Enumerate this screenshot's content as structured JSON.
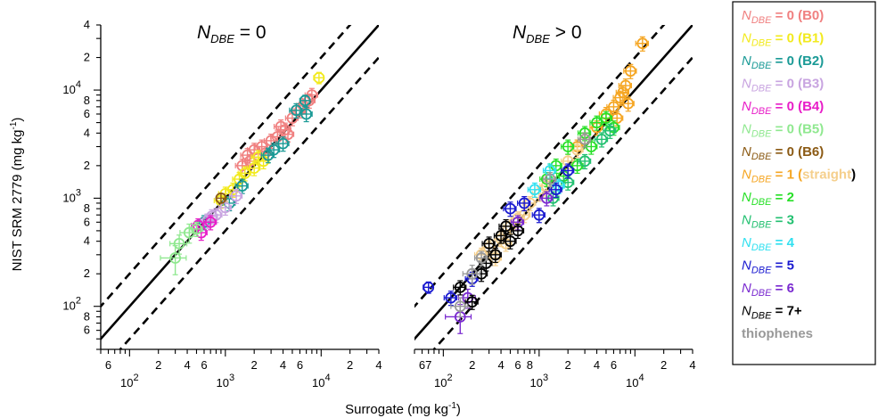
{
  "figure": {
    "xlabel": "Surrogate (mg kg",
    "xlabel_sup": "-1",
    "xlabel_close": ")",
    "ylabel": "NIST SRM 2779 (mg kg",
    "ylabel_sup": "-1",
    "ylabel_close": ")",
    "panel_titles": [
      {
        "base": "N",
        "sub": "DBE",
        "rest": " = 0"
      },
      {
        "base": "N",
        "sub": "DBE",
        "rest": " > 0"
      }
    ],
    "legend": [
      {
        "base": "N",
        "sub": "DBE",
        "rest": " = 0 (B0)",
        "color": "#f08080"
      },
      {
        "base": "N",
        "sub": "DBE",
        "rest": " = 0 (B1)",
        "color": "#f2ea1e"
      },
      {
        "base": "N",
        "sub": "DBE",
        "rest": " = 0 (B2)",
        "color": "#1a9a96"
      },
      {
        "base": "N",
        "sub": "DBE",
        "rest": " = 0 (B3)",
        "color": "#c8a4e0"
      },
      {
        "base": "N",
        "sub": "DBE",
        "rest": " = 0 (B4)",
        "color": "#e81ec8"
      },
      {
        "base": "N",
        "sub": "DBE",
        "rest": " = 0 (B5)",
        "color": "#8fe88f"
      },
      {
        "base": "N",
        "sub": "DBE",
        "rest": " = 0 (B6)",
        "color": "#8b5a14"
      },
      {
        "base": "N",
        "sub": "DBE",
        "rest": " = 1 (",
        "rest2": "straight",
        "rest3": ")",
        "color": "#f5a623",
        "color2": "#f5cf8c",
        "color3": "#000000"
      },
      {
        "base": "N",
        "sub": "DBE",
        "rest": " = 2",
        "color": "#28e028"
      },
      {
        "base": "N",
        "sub": "DBE",
        "rest": " = 3",
        "color": "#22c070"
      },
      {
        "base": "N",
        "sub": "DBE",
        "rest": " = 4",
        "color": "#30e0f0"
      },
      {
        "base": "N",
        "sub": "DBE",
        "rest": " = 5",
        "color": "#1a1ad0"
      },
      {
        "base": "N",
        "sub": "DBE",
        "rest": " = 6",
        "color": "#7a2ad0"
      },
      {
        "base": "N",
        "sub": "DBE",
        "rest": " = 7+",
        "color": "#000000"
      },
      {
        "text": "thiophenes",
        "color": "#999999"
      }
    ]
  },
  "chart_data": [
    {
      "type": "scatter",
      "title": "N_DBE = 0",
      "xlabel": "Surrogate (mg kg-1)",
      "ylabel": "NIST SRM 2779 (mg kg-1)",
      "x_scale": "log",
      "y_scale": "log",
      "xlim": [
        50,
        40000
      ],
      "ylim": [
        40,
        40000
      ],
      "x_ticks": [
        {
          "v": 60,
          "t": "6"
        },
        {
          "v": 100,
          "t": "10",
          "sup": "2"
        },
        {
          "v": 200,
          "t": "2"
        },
        {
          "v": 400,
          "t": "4"
        },
        {
          "v": 600,
          "t": "6"
        },
        {
          "v": 1000,
          "t": "10",
          "sup": "3"
        },
        {
          "v": 2000,
          "t": "2"
        },
        {
          "v": 4000,
          "t": "4"
        },
        {
          "v": 6000,
          "t": "6"
        },
        {
          "v": 10000,
          "t": "10",
          "sup": "4"
        },
        {
          "v": 20000,
          "t": "2"
        },
        {
          "v": 40000,
          "t": "4"
        }
      ],
      "y_ticks": [
        {
          "v": 60,
          "t": "6"
        },
        {
          "v": 80,
          "t": "8"
        },
        {
          "v": 100,
          "t": "10",
          "sup": "2"
        },
        {
          "v": 200,
          "t": "2"
        },
        {
          "v": 400,
          "t": "4"
        },
        {
          "v": 600,
          "t": "6"
        },
        {
          "v": 800,
          "t": "8"
        },
        {
          "v": 1000,
          "t": "10",
          "sup": "3"
        },
        {
          "v": 2000,
          "t": "2"
        },
        {
          "v": 4000,
          "t": "4"
        },
        {
          "v": 6000,
          "t": "6"
        },
        {
          "v": 8000,
          "t": "8"
        },
        {
          "v": 10000,
          "t": "10",
          "sup": "4"
        },
        {
          "v": 20000,
          "t": "2"
        },
        {
          "v": 40000,
          "t": "4"
        }
      ],
      "reference_lines": [
        {
          "name": "1:1",
          "factor": 1,
          "style": "solid"
        },
        {
          "name": "2x",
          "factor": 2,
          "style": "dashed"
        },
        {
          "name": "0.5x",
          "factor": 0.5,
          "style": "dashed"
        }
      ],
      "series": [
        {
          "color": "#f08080",
          "points": [
            [
              2000,
              2800,
              0.15
            ],
            [
              2400,
              3000,
              0.15
            ],
            [
              1800,
              2200,
              0.15
            ],
            [
              3000,
              3400,
              0.15
            ],
            [
              3500,
              3700,
              0.15
            ],
            [
              4200,
              4300,
              0.15
            ],
            [
              5000,
              5500,
              0.15
            ],
            [
              6000,
              6500,
              0.15
            ],
            [
              7500,
              8000,
              0.15
            ],
            [
              1500,
              2000,
              0.15
            ],
            [
              2600,
              2600,
              0.15
            ],
            [
              1700,
              2500,
              0.15
            ],
            [
              3800,
              4600,
              0.15
            ],
            [
              4500,
              3900,
              0.15
            ],
            [
              6500,
              7200,
              0.15
            ],
            [
              8000,
              9000,
              0.15
            ]
          ]
        },
        {
          "color": "#f2ea1e",
          "points": [
            [
              9500,
              13000,
              0.12
            ],
            [
              1200,
              1200,
              0.15
            ],
            [
              1400,
              1500,
              0.15
            ],
            [
              900,
              950,
              0.15
            ],
            [
              2000,
              1900,
              0.15
            ],
            [
              2500,
              2200,
              0.15
            ],
            [
              1000,
              1100,
              0.15
            ],
            [
              1600,
              1700,
              0.15
            ],
            [
              2200,
              2400,
              0.15
            ]
          ]
        },
        {
          "color": "#1a9a96",
          "points": [
            [
              5500,
              6500,
              0.15
            ],
            [
              6800,
              8000,
              0.12
            ],
            [
              3200,
              2800,
              0.15
            ],
            [
              2800,
              2500,
              0.15
            ],
            [
              1500,
              1300,
              0.15
            ],
            [
              4000,
              3200,
              0.15
            ],
            [
              7000,
              6000,
              0.15
            ],
            [
              1100,
              900,
              0.15
            ],
            [
              600,
              600,
              0.15
            ]
          ]
        },
        {
          "color": "#c8a4e0",
          "points": [
            [
              800,
              700,
              0.15
            ],
            [
              1000,
              820,
              0.15
            ],
            [
              650,
              620,
              0.15
            ],
            [
              1300,
              1050,
              0.15
            ],
            [
              720,
              680,
              0.15
            ]
          ]
        },
        {
          "color": "#e81ec8",
          "points": [
            [
              520,
              560,
              0.15
            ],
            [
              560,
              480,
              0.15
            ],
            [
              700,
              600,
              0.15
            ]
          ]
        },
        {
          "color": "#8fe88f",
          "points": [
            [
              300,
              280,
              0.3
            ],
            [
              330,
              380,
              0.2
            ],
            [
              420,
              480,
              0.2
            ],
            [
              500,
              520,
              0.15
            ]
          ]
        },
        {
          "color": "#8b5a14",
          "points": [
            [
              900,
              1000,
              0.1
            ]
          ]
        }
      ]
    },
    {
      "type": "scatter",
      "title": "N_DBE > 0",
      "xlabel": "Surrogate (mg kg-1)",
      "ylabel": "NIST SRM 2779 (mg kg-1)",
      "x_scale": "log",
      "y_scale": "log",
      "xlim": [
        50,
        40000
      ],
      "ylim": [
        40,
        40000
      ],
      "x_ticks": [
        {
          "v": 60,
          "t": "6"
        },
        {
          "v": 70,
          "t": "7"
        },
        {
          "v": 100,
          "t": "10",
          "sup": "2"
        },
        {
          "v": 200,
          "t": "2"
        },
        {
          "v": 400,
          "t": "4"
        },
        {
          "v": 600,
          "t": "6"
        },
        {
          "v": 800,
          "t": "8"
        },
        {
          "v": 1000,
          "t": "10",
          "sup": "3"
        },
        {
          "v": 2000,
          "t": "2"
        },
        {
          "v": 4000,
          "t": "4"
        },
        {
          "v": 6000,
          "t": "6"
        },
        {
          "v": 10000,
          "t": "10",
          "sup": "4"
        },
        {
          "v": 20000,
          "t": "2"
        },
        {
          "v": 40000,
          "t": "4"
        }
      ],
      "reference_lines": [
        {
          "name": "1:1",
          "factor": 1,
          "style": "solid"
        },
        {
          "name": "2x",
          "factor": 2,
          "style": "dashed"
        },
        {
          "name": "0.5x",
          "factor": 0.5,
          "style": "dashed"
        }
      ],
      "series": [
        {
          "color": "#f5a623",
          "points": [
            [
              12000,
              27000,
              0.15
            ],
            [
              9000,
              15000,
              0.15
            ],
            [
              8000,
              11000,
              0.15
            ],
            [
              7000,
              8500,
              0.15
            ],
            [
              6000,
              7000,
              0.15
            ],
            [
              5000,
              6000,
              0.15
            ],
            [
              4000,
              4500,
              0.15
            ],
            [
              3000,
              3500,
              0.15
            ],
            [
              2500,
              3000,
              0.15
            ],
            [
              6500,
              5500,
              0.15
            ],
            [
              8500,
              7500,
              0.15
            ],
            [
              7500,
              9500,
              0.15
            ]
          ]
        },
        {
          "color": "#f5cf8c",
          "points": [
            [
              300,
              350,
              0.15
            ],
            [
              350,
              280,
              0.15
            ],
            [
              400,
              420,
              0.15
            ],
            [
              500,
              550,
              0.15
            ],
            [
              600,
              650,
              0.15
            ],
            [
              700,
              700,
              0.15
            ],
            [
              250,
              300,
              0.15
            ],
            [
              450,
              380,
              0.15
            ],
            [
              800,
              900,
              0.15
            ],
            [
              1000,
              1100,
              0.15
            ],
            [
              1200,
              1300,
              0.15
            ],
            [
              2000,
              2200,
              0.15
            ],
            [
              2500,
              2800,
              0.15
            ]
          ]
        },
        {
          "color": "#28e028",
          "points": [
            [
              2000,
              3000,
              0.15
            ],
            [
              1500,
              2000,
              0.15
            ],
            [
              1200,
              1500,
              0.15
            ],
            [
              3000,
              4000,
              0.15
            ],
            [
              4000,
              5000,
              0.15
            ],
            [
              5000,
              5500,
              0.15
            ],
            [
              3500,
              3000,
              0.15
            ],
            [
              6000,
              4500,
              0.15
            ],
            [
              1800,
              1600,
              0.15
            ],
            [
              2500,
              2000,
              0.15
            ]
          ]
        },
        {
          "color": "#22c070",
          "points": [
            [
              4500,
              3500,
              0.15
            ],
            [
              5500,
              4200,
              0.15
            ],
            [
              3000,
              2200,
              0.15
            ],
            [
              2000,
              1400,
              0.15
            ],
            [
              1400,
              1000,
              0.15
            ]
          ]
        },
        {
          "color": "#30e0f0",
          "points": [
            [
              1300,
              1800,
              0.15
            ],
            [
              900,
              1200,
              0.15
            ],
            [
              1600,
              1300,
              0.15
            ]
          ]
        },
        {
          "color": "#1a1ad0",
          "points": [
            [
              70,
              150,
              0.12
            ],
            [
              120,
              120,
              0.15
            ],
            [
              200,
              180,
              0.15
            ],
            [
              500,
              800,
              0.15
            ],
            [
              700,
              900,
              0.15
            ],
            [
              1500,
              1200,
              0.15
            ],
            [
              2000,
              1800,
              0.15
            ],
            [
              1000,
              700,
              0.15
            ]
          ]
        },
        {
          "color": "#7a2ad0",
          "points": [
            [
              150,
              80,
              0.3
            ],
            [
              180,
              120,
              0.2
            ],
            [
              600,
              600,
              0.15
            ],
            [
              1200,
              1000,
              0.15
            ]
          ]
        },
        {
          "color": "#000000",
          "points": [
            [
              150,
              150,
              0.15
            ],
            [
              200,
              110,
              0.15
            ],
            [
              250,
              200,
              0.15
            ],
            [
              300,
              380,
              0.15
            ],
            [
              400,
              450,
              0.15
            ],
            [
              500,
              400,
              0.15
            ],
            [
              350,
              300,
              0.15
            ],
            [
              450,
              550,
              0.15
            ],
            [
              600,
              500,
              0.15
            ],
            [
              280,
              250,
              0.15
            ]
          ]
        },
        {
          "color": "#999999",
          "points": [
            [
              200,
              200,
              0.2
            ],
            [
              250,
              280,
              0.15
            ],
            [
              1300,
              1500,
              0.15
            ],
            [
              3000,
              3500,
              0.15
            ],
            [
              150,
              100,
              0.2
            ]
          ]
        }
      ]
    }
  ]
}
